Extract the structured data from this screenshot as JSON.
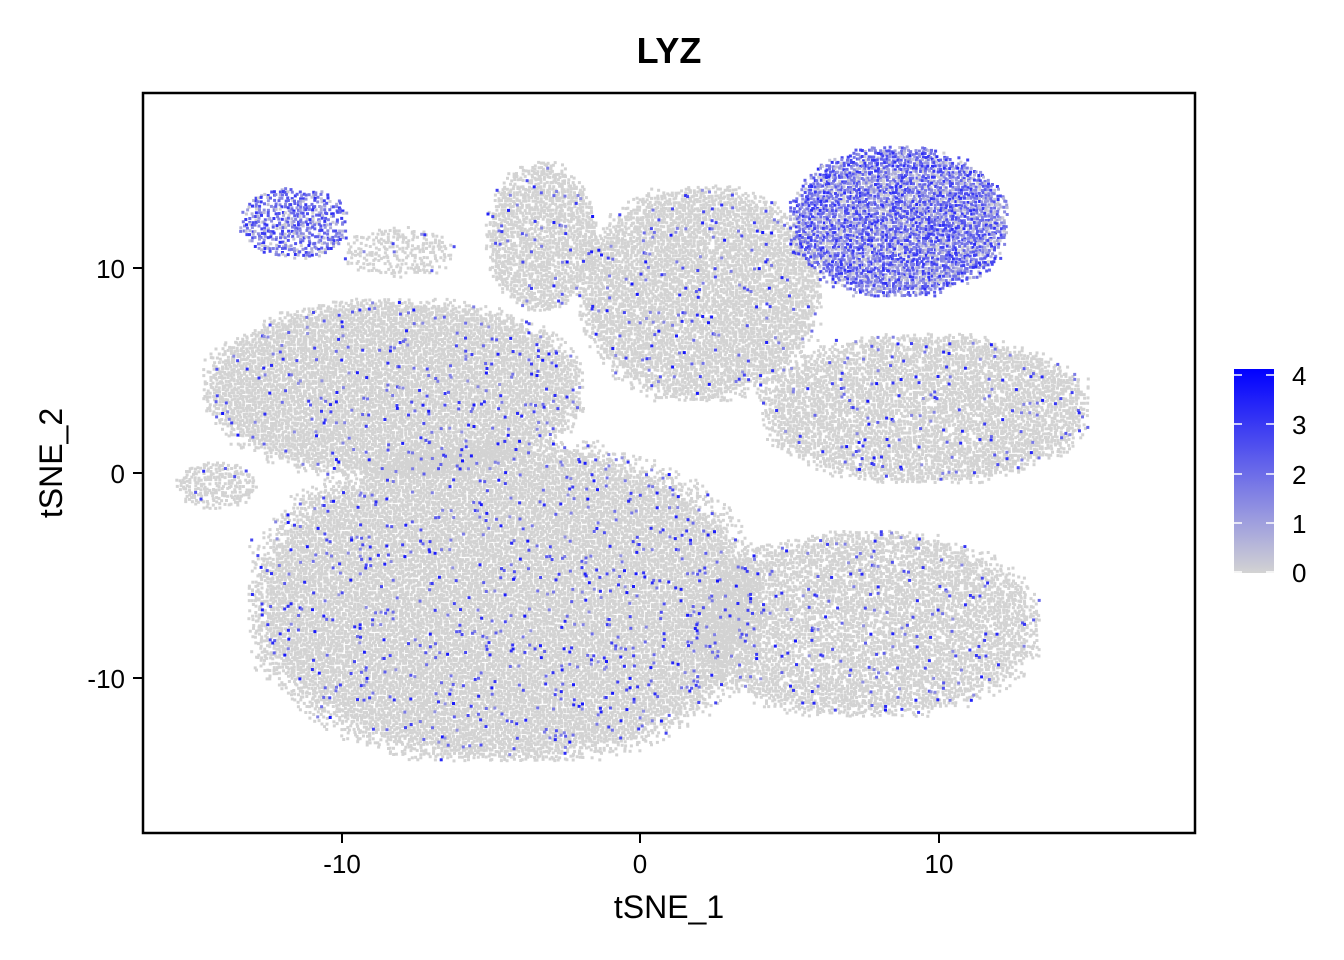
{
  "chart_data": {
    "type": "scatter",
    "title": "LYZ",
    "xlabel": "tSNE_1",
    "ylabel": "tSNE_2",
    "xlim": [
      -16.5,
      18.5
    ],
    "ylim": [
      -17.5,
      18.5
    ],
    "xticks": [
      -10,
      0,
      10
    ],
    "xtick_labels": [
      "-10",
      "0",
      "10"
    ],
    "yticks": [
      10,
      0,
      -10
    ],
    "ytick_labels": [
      "10",
      "0",
      "-10"
    ],
    "grid": false,
    "legend_position": "right",
    "color_scale": {
      "low_color": "#d3d3d3",
      "high_color": "#0000ff",
      "range": [
        0,
        4.2
      ],
      "breaks": [
        4,
        3,
        2,
        1,
        0
      ],
      "break_labels": [
        "4",
        "3",
        "2",
        "1",
        "0"
      ]
    },
    "clusters": [
      {
        "center": [
          -8.2,
          4.2
        ],
        "radii": [
          6.3,
          4.3
        ],
        "density": 1.0,
        "expr": "low"
      },
      {
        "center": [
          -4.5,
          -6.2
        ],
        "radii": [
          8.5,
          7.8
        ],
        "density": 1.0,
        "expr": "low"
      },
      {
        "center": [
          -3.3,
          11.6
        ],
        "radii": [
          1.8,
          3.6
        ],
        "density": 0.9,
        "expr": "low"
      },
      {
        "center": [
          2.0,
          8.8
        ],
        "radii": [
          4.0,
          5.2
        ],
        "density": 0.95,
        "expr": "low"
      },
      {
        "center": [
          9.5,
          3.2
        ],
        "radii": [
          5.5,
          3.6
        ],
        "density": 0.9,
        "expr": "low"
      },
      {
        "center": [
          7.5,
          -7.3
        ],
        "radii": [
          5.8,
          4.5
        ],
        "density": 0.85,
        "expr": "low"
      },
      {
        "center": [
          8.6,
          12.3
        ],
        "radii": [
          3.6,
          3.6
        ],
        "density": 1.0,
        "expr": "high"
      },
      {
        "center": [
          -11.5,
          12.2
        ],
        "radii": [
          1.8,
          1.7
        ],
        "density": 0.7,
        "expr": "high"
      },
      {
        "center": [
          -14.1,
          -0.5
        ],
        "radii": [
          1.3,
          1.1
        ],
        "density": 0.75,
        "expr": "low"
      },
      {
        "center": [
          -8.0,
          10.8
        ],
        "radii": [
          1.8,
          1.2
        ],
        "density": 0.5,
        "expr": "low"
      }
    ]
  }
}
